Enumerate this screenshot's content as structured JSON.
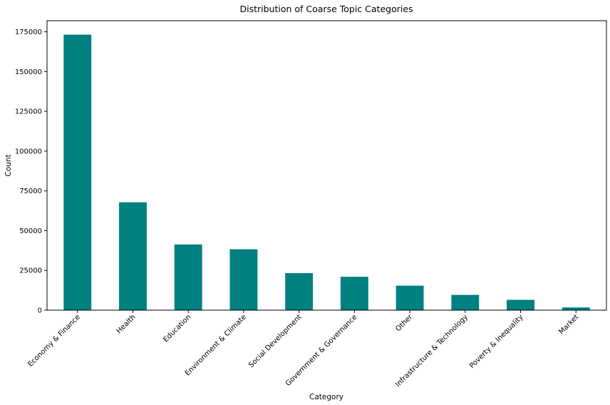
{
  "chart_data": {
    "type": "bar",
    "title": "Distribution of Coarse Topic Categories",
    "xlabel": "Category",
    "ylabel": "Count",
    "categories": [
      "Economy & Finance",
      "Health",
      "Education",
      "Environment & Climate",
      "Social Development",
      "Government & Governance",
      "Other",
      "Infrastructure & Technology",
      "Poverty & Inequality",
      "Market"
    ],
    "values": [
      173200,
      67800,
      41300,
      38300,
      23300,
      21000,
      15400,
      9600,
      6500,
      1700
    ],
    "ylim": [
      0,
      182000
    ],
    "yticks": [
      0,
      25000,
      50000,
      75000,
      100000,
      125000,
      150000,
      175000
    ],
    "bar_color": "#008080",
    "grid": false,
    "legend": "none"
  }
}
